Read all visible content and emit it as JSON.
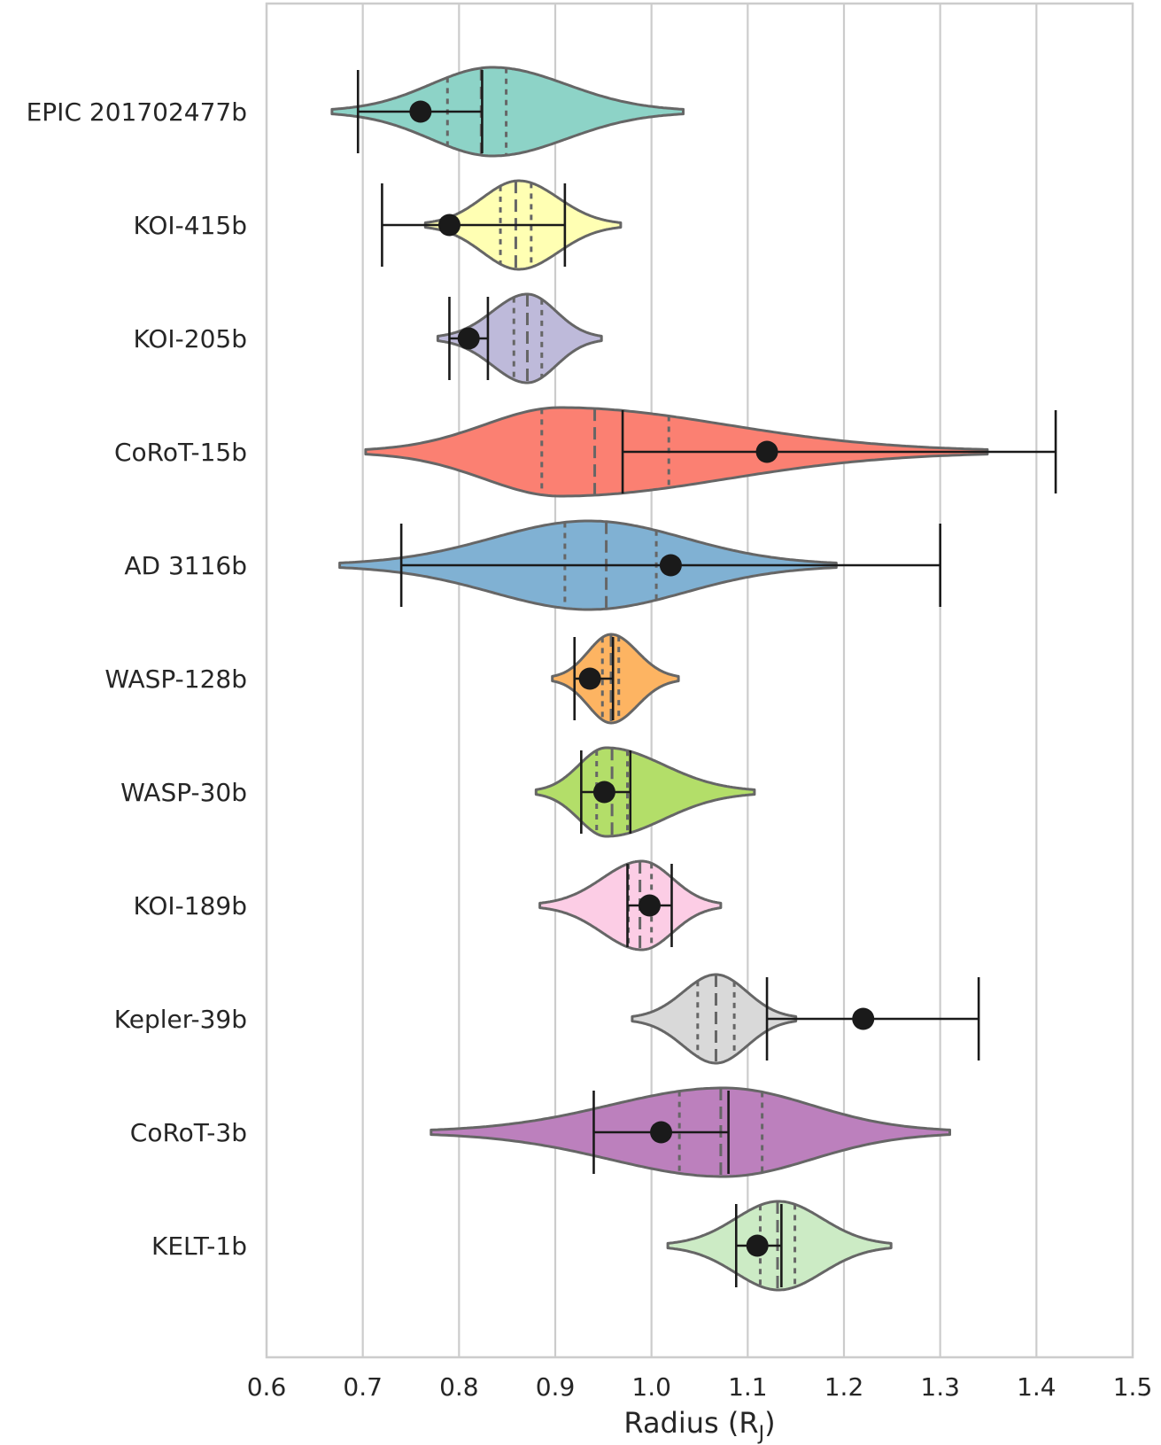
{
  "chart_data": {
    "type": "violin",
    "orientation": "horizontal",
    "xlabel": "Radius (R",
    "xlabel_subscript": "J",
    "xlabel_suffix": ")",
    "xlim": [
      0.6,
      1.5
    ],
    "xticks": [
      "0.6",
      "0.7",
      "0.8",
      "0.9",
      "1.0",
      "1.1",
      "1.2",
      "1.3",
      "1.4",
      "1.5"
    ],
    "grid": "vertical",
    "categories": [
      {
        "name": "EPIC 201702477b",
        "color": "#8dd3c7",
        "min": 0.668,
        "max": 1.033,
        "q1": 0.788,
        "median": 0.823,
        "q3": 0.849,
        "mode": 0.835,
        "point": 0.76,
        "err_low": 0.695,
        "err_high": 0.824
      },
      {
        "name": "KOI-415b",
        "color": "#ffffb3",
        "min": 0.765,
        "max": 0.968,
        "q1": 0.843,
        "median": 0.859,
        "q3": 0.875,
        "mode": 0.862,
        "point": 0.79,
        "err_low": 0.72,
        "err_high": 0.91
      },
      {
        "name": "KOI-205b",
        "color": "#bebada",
        "min": 0.778,
        "max": 0.948,
        "q1": 0.857,
        "median": 0.871,
        "q3": 0.886,
        "mode": 0.871,
        "point": 0.81,
        "err_low": 0.79,
        "err_high": 0.83
      },
      {
        "name": "CoRoT-15b",
        "color": "#fb8072",
        "min": 0.703,
        "max": 1.349,
        "q1": 0.886,
        "median": 0.941,
        "q3": 1.018,
        "mode": 0.905,
        "point": 1.12,
        "err_low": 0.97,
        "err_high": 1.42
      },
      {
        "name": "AD 3116b",
        "color": "#80b1d3",
        "min": 0.676,
        "max": 1.192,
        "q1": 0.91,
        "median": 0.953,
        "q3": 1.005,
        "mode": 0.935,
        "point": 1.02,
        "err_low": 0.74,
        "err_high": 1.3
      },
      {
        "name": "WASP-128b",
        "color": "#fdb462",
        "min": 0.897,
        "max": 1.028,
        "q1": 0.949,
        "median": 0.958,
        "q3": 0.966,
        "mode": 0.958,
        "point": 0.936,
        "err_low": 0.92,
        "err_high": 0.96
      },
      {
        "name": "WASP-30b",
        "color": "#b3de69",
        "min": 0.88,
        "max": 1.107,
        "q1": 0.943,
        "median": 0.959,
        "q3": 0.975,
        "mode": 0.953,
        "point": 0.951,
        "err_low": 0.927,
        "err_high": 0.978
      },
      {
        "name": "KOI-189b",
        "color": "#fccde5",
        "min": 0.884,
        "max": 1.072,
        "q1": 0.976,
        "median": 0.988,
        "q3": 1.0,
        "mode": 0.99,
        "point": 0.998,
        "err_low": 0.975,
        "err_high": 1.021
      },
      {
        "name": "Kepler-39b",
        "color": "#d9d9d9",
        "min": 0.98,
        "max": 1.15,
        "q1": 1.048,
        "median": 1.067,
        "q3": 1.086,
        "mode": 1.067,
        "point": 1.22,
        "err_low": 1.12,
        "err_high": 1.34
      },
      {
        "name": "CoRoT-3b",
        "color": "#bc80bd",
        "min": 0.771,
        "max": 1.31,
        "q1": 1.029,
        "median": 1.072,
        "q3": 1.115,
        "mode": 1.075,
        "point": 1.01,
        "err_low": 0.94,
        "err_high": 1.08
      },
      {
        "name": "KELT-1b",
        "color": "#ccebc5",
        "min": 1.017,
        "max": 1.249,
        "q1": 1.113,
        "median": 1.131,
        "q3": 1.149,
        "mode": 1.132,
        "point": 1.11,
        "err_low": 1.088,
        "err_high": 1.135
      }
    ]
  }
}
